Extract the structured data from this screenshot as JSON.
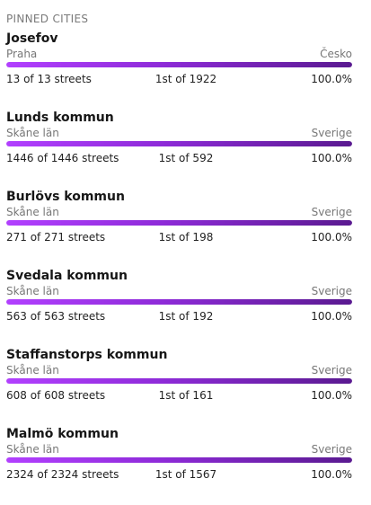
{
  "section": {
    "title": "PINNED CITIES"
  },
  "cities": [
    {
      "name": "Josefov",
      "region": "Praha",
      "country": "Česko",
      "streets": "13 of 13 streets",
      "rank": "1st of 1922",
      "percent": "100.0%",
      "progress": 1.0
    },
    {
      "name": "Lunds kommun",
      "region": "Skåne län",
      "country": "Sverige",
      "streets": "1446 of 1446 streets",
      "rank": "1st of 592",
      "percent": "100.0%",
      "progress": 1.0
    },
    {
      "name": "Burlövs kommun",
      "region": "Skåne län",
      "country": "Sverige",
      "streets": "271 of 271 streets",
      "rank": "1st of 198",
      "percent": "100.0%",
      "progress": 1.0
    },
    {
      "name": "Svedala kommun",
      "region": "Skåne län",
      "country": "Sverige",
      "streets": "563 of 563 streets",
      "rank": "1st of 192",
      "percent": "100.0%",
      "progress": 1.0
    },
    {
      "name": "Staffanstorps kommun",
      "region": "Skåne län",
      "country": "Sverige",
      "streets": "608 of 608 streets",
      "rank": "1st of 161",
      "percent": "100.0%",
      "progress": 1.0
    },
    {
      "name": "Malmö kommun",
      "region": "Skåne län",
      "country": "Sverige",
      "streets": "2324 of 2324 streets",
      "rank": "1st of 1567",
      "percent": "100.0%",
      "progress": 1.0
    }
  ],
  "colors": {
    "bar_start": "#b240ff",
    "bar_end": "#5a1a90"
  }
}
